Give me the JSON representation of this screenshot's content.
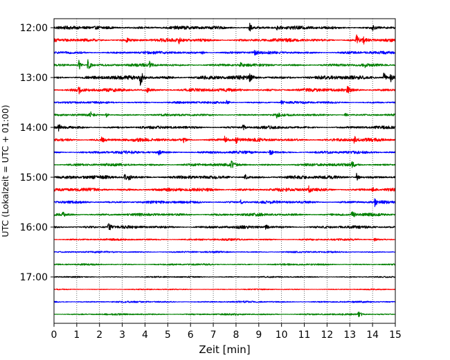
{
  "chart_data": {
    "type": "line",
    "title": "",
    "xlabel": "Zeit  [min]",
    "ylabel": "UTC (Lokalzeit = UTC + 01:00)",
    "xlim": [
      0,
      15
    ],
    "x_ticks": [
      "0",
      "1",
      "2",
      "3",
      "4",
      "5",
      "6",
      "7",
      "8",
      "9",
      "10",
      "11",
      "12",
      "13",
      "14",
      "15"
    ],
    "y_tick_labels": [
      "12:00",
      "13:00",
      "14:00",
      "15:00",
      "16:00",
      "17:00"
    ],
    "grid": "vertical dotted at each minute",
    "legend": "none",
    "trace_colors": [
      "#000000",
      "#ff0000",
      "#0000ff",
      "#008000"
    ],
    "traces": [
      {
        "start": "12:00",
        "color": "#000000",
        "amplitude": 0.3,
        "events": [
          [
            8.6,
            0.8
          ],
          [
            9.8,
            0.5
          ],
          [
            14.0,
            0.4
          ]
        ]
      },
      {
        "start": "12:15",
        "color": "#ff0000",
        "amplitude": 0.3,
        "events": [
          [
            3.2,
            0.6
          ],
          [
            5.5,
            0.5
          ],
          [
            13.3,
            0.9
          ],
          [
            13.6,
            0.7
          ]
        ]
      },
      {
        "start": "12:30",
        "color": "#0000ff",
        "amplitude": 0.25,
        "events": [
          [
            6.5,
            0.4
          ],
          [
            8.8,
            0.5
          ]
        ]
      },
      {
        "start": "12:45",
        "color": "#008000",
        "amplitude": 0.25,
        "events": [
          [
            1.1,
            1.2
          ],
          [
            1.5,
            1.5
          ],
          [
            4.2,
            0.7
          ],
          [
            8.2,
            0.4
          ],
          [
            13.6,
            0.6
          ]
        ]
      },
      {
        "start": "13:00",
        "color": "#000000",
        "amplitude": 0.35,
        "events": [
          [
            3.8,
            1.9
          ],
          [
            8.6,
            0.7
          ],
          [
            14.5,
            1.1
          ],
          [
            14.8,
            0.7
          ]
        ]
      },
      {
        "start": "13:15",
        "color": "#ff0000",
        "amplitude": 0.3,
        "events": [
          [
            1.1,
            0.6
          ],
          [
            4.1,
            0.4
          ],
          [
            12.9,
            0.7
          ]
        ]
      },
      {
        "start": "13:30",
        "color": "#0000ff",
        "amplitude": 0.2,
        "events": [
          [
            7.6,
            0.5
          ],
          [
            10.0,
            0.4
          ]
        ]
      },
      {
        "start": "13:45",
        "color": "#008000",
        "amplitude": 0.2,
        "events": [
          [
            1.6,
            0.6
          ],
          [
            2.3,
            0.4
          ],
          [
            9.8,
            0.6
          ],
          [
            12.8,
            0.4
          ]
        ]
      },
      {
        "start": "14:00",
        "color": "#000000",
        "amplitude": 0.25,
        "events": [
          [
            0.2,
            0.7
          ],
          [
            8.3,
            0.6
          ]
        ]
      },
      {
        "start": "14:15",
        "color": "#ff0000",
        "amplitude": 0.3,
        "events": [
          [
            2.1,
            0.6
          ],
          [
            5.7,
            0.5
          ],
          [
            7.5,
            0.8
          ],
          [
            8.0,
            0.7
          ],
          [
            13.2,
            0.6
          ]
        ]
      },
      {
        "start": "14:30",
        "color": "#0000ff",
        "amplitude": 0.25,
        "events": [
          [
            4.6,
            0.5
          ],
          [
            9.5,
            0.7
          ]
        ]
      },
      {
        "start": "14:45",
        "color": "#008000",
        "amplitude": 0.25,
        "events": [
          [
            7.8,
            0.7
          ],
          [
            13.1,
            0.7
          ]
        ]
      },
      {
        "start": "15:00",
        "color": "#000000",
        "amplitude": 0.3,
        "events": [
          [
            3.1,
            0.8
          ],
          [
            3.3,
            0.6
          ],
          [
            8.4,
            0.5
          ],
          [
            13.3,
            0.8
          ]
        ]
      },
      {
        "start": "15:15",
        "color": "#ff0000",
        "amplitude": 0.3,
        "events": [
          [
            11.2,
            0.6
          ],
          [
            14.0,
            0.5
          ]
        ]
      },
      {
        "start": "15:30",
        "color": "#0000ff",
        "amplitude": 0.25,
        "events": [
          [
            8.2,
            0.4
          ],
          [
            14.1,
            0.7
          ]
        ]
      },
      {
        "start": "15:45",
        "color": "#008000",
        "amplitude": 0.25,
        "events": [
          [
            0.4,
            0.4
          ],
          [
            13.1,
            0.9
          ]
        ]
      },
      {
        "start": "16:00",
        "color": "#000000",
        "amplitude": 0.25,
        "events": [
          [
            2.4,
            0.9
          ],
          [
            9.3,
            0.5
          ]
        ]
      },
      {
        "start": "16:15",
        "color": "#ff0000",
        "amplitude": 0.18,
        "events": [
          [
            14.1,
            0.3
          ]
        ]
      },
      {
        "start": "16:30",
        "color": "#0000ff",
        "amplitude": 0.15,
        "events": []
      },
      {
        "start": "16:45",
        "color": "#008000",
        "amplitude": 0.15,
        "events": []
      },
      {
        "start": "17:00",
        "color": "#000000",
        "amplitude": 0.12,
        "events": []
      },
      {
        "start": "17:15",
        "color": "#ff0000",
        "amplitude": 0.1,
        "events": []
      },
      {
        "start": "17:30",
        "color": "#0000ff",
        "amplitude": 0.15,
        "events": []
      },
      {
        "start": "17:45",
        "color": "#008000",
        "amplitude": 0.15,
        "events": [
          [
            13.4,
            0.8
          ]
        ]
      }
    ]
  }
}
